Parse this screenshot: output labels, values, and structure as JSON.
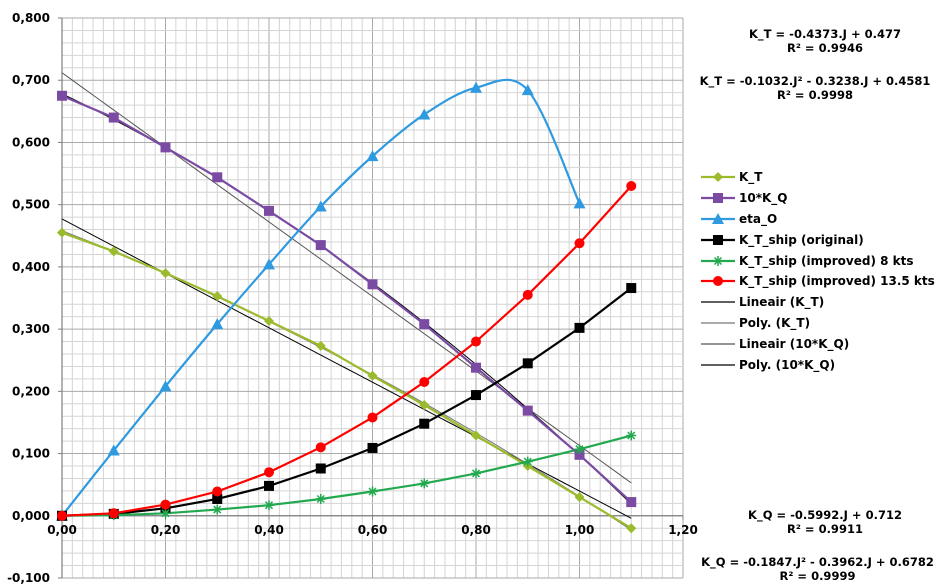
{
  "chart_data": {
    "type": "line",
    "xlim": [
      0,
      1.2
    ],
    "ylim": [
      -0.1,
      0.8
    ],
    "xticks": [
      "0,00",
      "0,20",
      "0,40",
      "0,60",
      "0,80",
      "1,00",
      "1,20"
    ],
    "yticks": [
      "-0,100",
      "0,000",
      "0,100",
      "0,200",
      "0,300",
      "0,400",
      "0,500",
      "0,600",
      "0,700",
      "0,800"
    ],
    "grid": true,
    "legend_position": "right",
    "series": [
      {
        "name": "K_T",
        "color": "#9bbb2d",
        "marker": "diamond",
        "x": [
          0,
          0.1,
          0.2,
          0.3,
          0.4,
          0.5,
          0.6,
          0.7,
          0.8,
          0.9,
          1.0,
          1.1
        ],
        "y": [
          0.455,
          0.425,
          0.39,
          0.353,
          0.313,
          0.273,
          0.225,
          0.178,
          0.129,
          0.08,
          0.03,
          -0.02
        ]
      },
      {
        "name": "10*K_Q",
        "color": "#7b4aa3",
        "marker": "square",
        "x": [
          0,
          0.1,
          0.2,
          0.3,
          0.4,
          0.5,
          0.6,
          0.7,
          0.8,
          0.9,
          1.0,
          1.1
        ],
        "y": [
          0.675,
          0.64,
          0.592,
          0.544,
          0.49,
          0.435,
          0.372,
          0.308,
          0.238,
          0.169,
          0.098,
          0.022
        ]
      },
      {
        "name": "eta_O",
        "color": "#2f9ae0",
        "marker": "triangle",
        "smooth": true,
        "x": [
          0,
          0.1,
          0.2,
          0.3,
          0.4,
          0.5,
          0.6,
          0.7,
          0.8,
          0.9,
          1.0
        ],
        "y": [
          0.0,
          0.105,
          0.208,
          0.308,
          0.404,
          0.497,
          0.578,
          0.645,
          0.688,
          0.684,
          0.502
        ]
      },
      {
        "name": "K_T_ship (original)",
        "color": "#000000",
        "marker": "square",
        "x": [
          0,
          0.1,
          0.2,
          0.3,
          0.4,
          0.5,
          0.6,
          0.7,
          0.8,
          0.9,
          1.0,
          1.1
        ],
        "y": [
          0.0,
          0.003,
          0.012,
          0.027,
          0.048,
          0.076,
          0.109,
          0.148,
          0.194,
          0.245,
          0.302,
          0.366
        ]
      },
      {
        "name": "K_T_ship (improved) 8 kts",
        "color": "#22a94f",
        "marker": "star",
        "x": [
          0,
          0.1,
          0.2,
          0.3,
          0.4,
          0.5,
          0.6,
          0.7,
          0.8,
          0.9,
          1.0,
          1.1
        ],
        "y": [
          0.0,
          0.001,
          0.004,
          0.01,
          0.017,
          0.027,
          0.039,
          0.052,
          0.068,
          0.087,
          0.107,
          0.129
        ]
      },
      {
        "name": "K_T_ship (improved) 13.5 kts",
        "color": "#ff0000",
        "marker": "circle",
        "x": [
          0,
          0.1,
          0.2,
          0.3,
          0.4,
          0.5,
          0.6,
          0.7,
          0.8,
          0.9,
          1.0,
          1.1
        ],
        "y": [
          0.0,
          0.004,
          0.018,
          0.039,
          0.07,
          0.11,
          0.158,
          0.215,
          0.28,
          0.355,
          0.438,
          0.53
        ]
      }
    ],
    "trendlines": [
      {
        "name": "Lineair (K_T)",
        "type": "linear",
        "coeffs": [
          0.477,
          -0.4373
        ],
        "color": "#000000",
        "x_range": [
          0,
          1.1
        ]
      },
      {
        "name": "Poly. (K_T)",
        "type": "poly2",
        "coeffs": [
          0.4581,
          -0.3238,
          -0.1032
        ],
        "color": "#777777",
        "x_range": [
          0,
          1.1
        ]
      },
      {
        "name": "Lineair (10*K_Q)",
        "type": "linear",
        "coeffs": [
          0.712,
          -0.5992
        ],
        "color": "#555555",
        "x_range": [
          0,
          1.1
        ]
      },
      {
        "name": "Poly. (10*K_Q)",
        "type": "poly2",
        "coeffs": [
          0.6782,
          -0.3962,
          -0.1847
        ],
        "color": "#000000",
        "x_range": [
          0,
          1.1
        ]
      }
    ],
    "equations": {
      "kt_linear": {
        "eq": "K_T = -0.4373.J + 0.477",
        "r2": "R² = 0.9946"
      },
      "kt_poly": {
        "eq": "K_T = -0.1032.J² - 0.3238.J + 0.4581",
        "r2": "R² = 0.9998"
      },
      "kq_linear": {
        "eq": "K_Q = -0.5992.J + 0.712",
        "r2": "R² = 0.9911"
      },
      "kq_poly": {
        "eq": "K_Q = -0.1847.J² - 0.3962.J + 0.6782",
        "r2": "R² = 0.9999"
      }
    }
  }
}
